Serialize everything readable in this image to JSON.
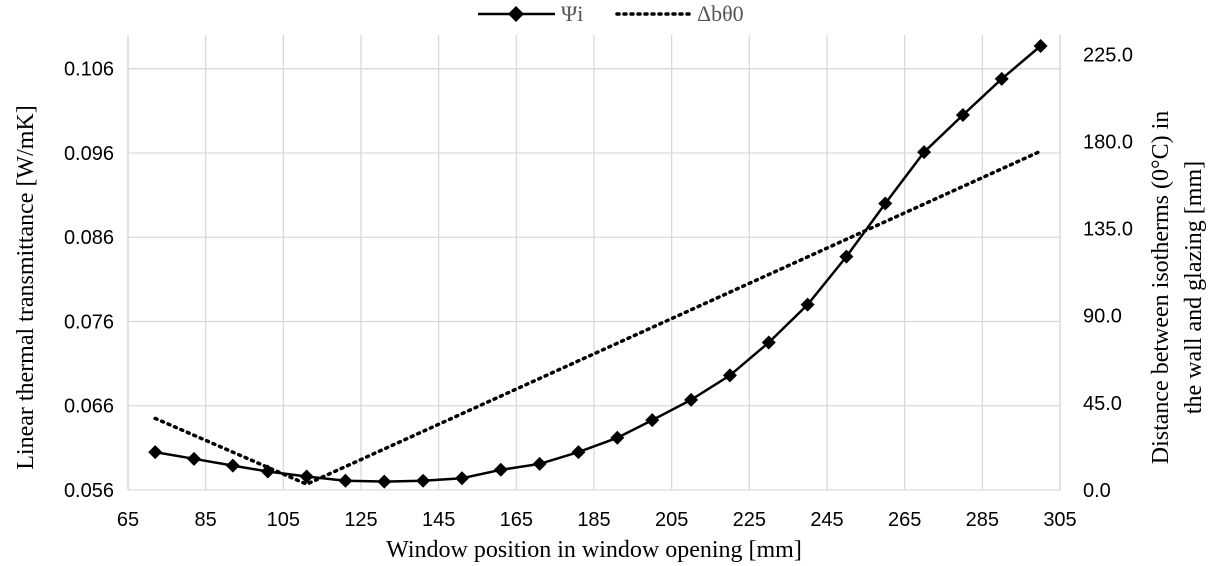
{
  "chart_data": {
    "type": "line",
    "xlabel": "Window position in window opening [mm]",
    "ylabel_left": "Linear thermal transmittance [W/mK]",
    "ylabel_right_line1": "Distance between isotherms (0°C) in",
    "ylabel_right_line2": "the wall and glazing [mm]",
    "xlim": [
      65,
      305
    ],
    "ylim_left": [
      0.056,
      0.11
    ],
    "ylim_right": [
      0,
      235
    ],
    "x_ticks": [
      "65",
      "85",
      "105",
      "125",
      "145",
      "165",
      "185",
      "205",
      "225",
      "245",
      "265",
      "285",
      "305"
    ],
    "y_left_ticks": [
      "0.056",
      "0.066",
      "0.076",
      "0.086",
      "0.096",
      "0.106"
    ],
    "y_right_ticks": [
      "0.0",
      "45.0",
      "90.0",
      "135.0",
      "180.0",
      "225.0"
    ],
    "grid": true,
    "legend_position": "top",
    "series": [
      {
        "name": "Ψi",
        "axis": "left",
        "style": "solid-diamond",
        "color": "#000000",
        "x": [
          72,
          82,
          92,
          101,
          111,
          121,
          131,
          141,
          151,
          161,
          171,
          181,
          191,
          200,
          210,
          220,
          230,
          240,
          250,
          260,
          270,
          280,
          290,
          300
        ],
        "values": [
          0.0605,
          0.0597,
          0.0589,
          0.0582,
          0.0576,
          0.0571,
          0.057,
          0.0571,
          0.0574,
          0.0584,
          0.0591,
          0.0605,
          0.0622,
          0.0643,
          0.0667,
          0.0696,
          0.0735,
          0.078,
          0.0837,
          0.09,
          0.0961,
          0.1005,
          0.1048,
          0.1087
        ]
      },
      {
        "name": "Δbθ0",
        "axis": "right",
        "style": "dotted",
        "color": "#000000",
        "x": [
          72,
          111,
          300
        ],
        "values": [
          37,
          3,
          175
        ]
      }
    ]
  }
}
